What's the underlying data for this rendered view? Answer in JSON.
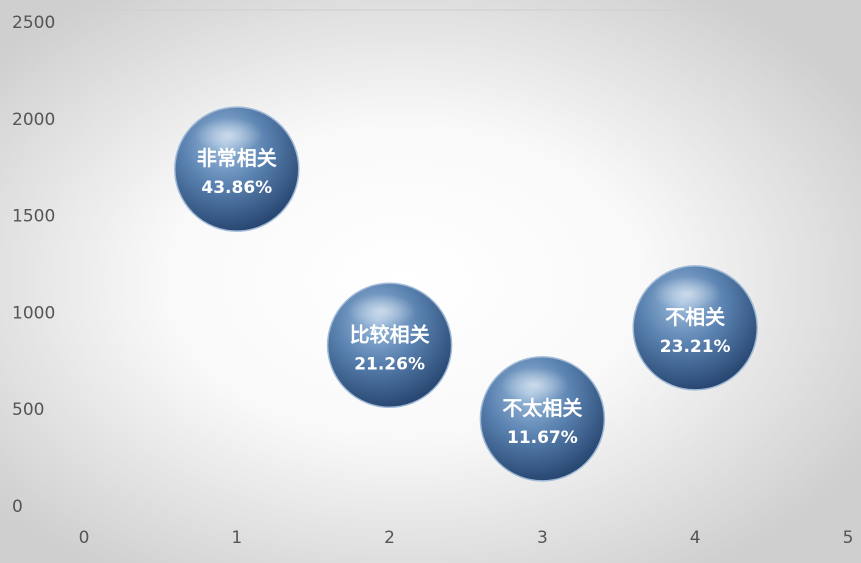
{
  "chart_data": {
    "type": "scatter",
    "title": "",
    "xlabel": "",
    "ylabel": "",
    "xlim": [
      0,
      5
    ],
    "ylim": [
      0,
      2500
    ],
    "xticks": [
      0,
      1,
      2,
      3,
      4,
      5
    ],
    "yticks": [
      0,
      500,
      1000,
      1500,
      2000,
      2500
    ],
    "grid": false,
    "legend": "none",
    "bubble_color": "#4f79a8",
    "points": [
      {
        "x": 1,
        "y": 1740,
        "label": "非常相关",
        "value": "43.86%"
      },
      {
        "x": 2,
        "y": 830,
        "label": "比较相关",
        "value": "21.26%"
      },
      {
        "x": 3,
        "y": 450,
        "label": "不太相关",
        "value": "11.67%"
      },
      {
        "x": 4,
        "y": 920,
        "label": "不相关",
        "value": "23.21%"
      }
    ]
  }
}
